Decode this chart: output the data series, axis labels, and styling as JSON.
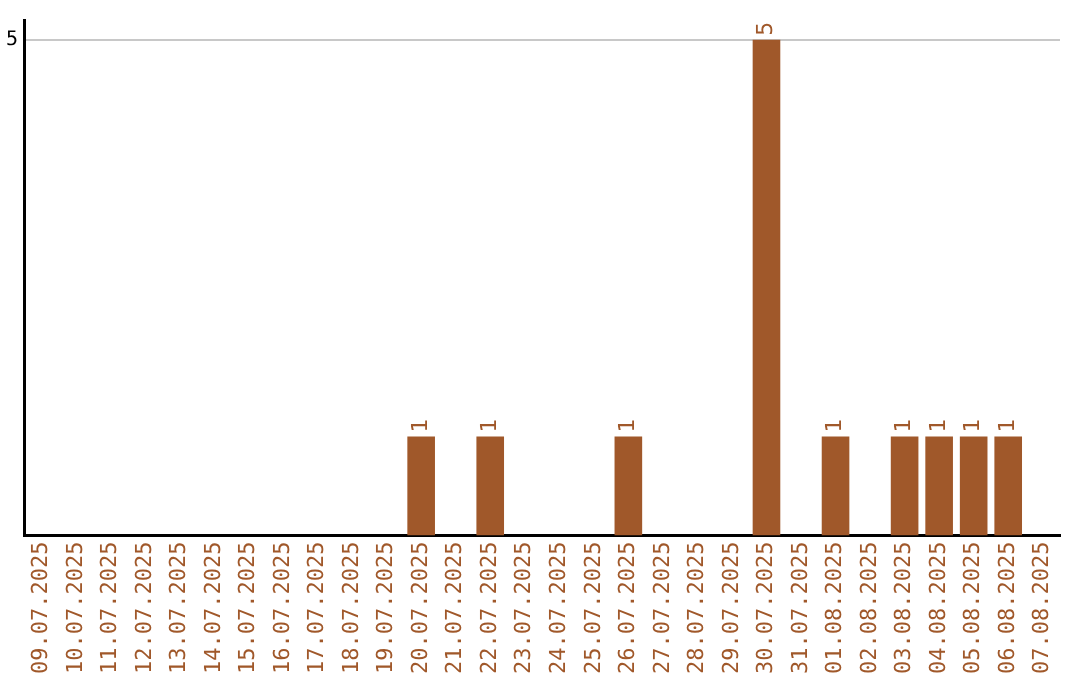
{
  "chart_data": {
    "type": "bar",
    "categories": [
      "09.07.2025",
      "10.07.2025",
      "11.07.2025",
      "12.07.2025",
      "13.07.2025",
      "14.07.2025",
      "15.07.2025",
      "16.07.2025",
      "17.07.2025",
      "18.07.2025",
      "19.07.2025",
      "20.07.2025",
      "21.07.2025",
      "22.07.2025",
      "23.07.2025",
      "24.07.2025",
      "25.07.2025",
      "26.07.2025",
      "27.07.2025",
      "28.07.2025",
      "29.07.2025",
      "30.07.2025",
      "31.07.2025",
      "01.08.2025",
      "02.08.2025",
      "03.08.2025",
      "04.08.2025",
      "05.08.2025",
      "06.08.2025",
      "07.08.2025"
    ],
    "values": [
      0,
      0,
      0,
      0,
      0,
      0,
      0,
      0,
      0,
      0,
      0,
      1,
      0,
      1,
      0,
      0,
      0,
      1,
      0,
      0,
      0,
      5,
      0,
      1,
      0,
      1,
      1,
      1,
      1,
      0
    ],
    "value_labels": [
      null,
      null,
      null,
      null,
      null,
      null,
      null,
      null,
      null,
      null,
      null,
      "1",
      null,
      "1",
      null,
      null,
      null,
      "1",
      null,
      null,
      null,
      "5",
      null,
      "1",
      null,
      "1",
      "1",
      "1",
      "1",
      null
    ],
    "color": "#a0582a",
    "ylim": [
      0,
      5.2
    ],
    "yticks": [
      5
    ],
    "grid": "y"
  }
}
